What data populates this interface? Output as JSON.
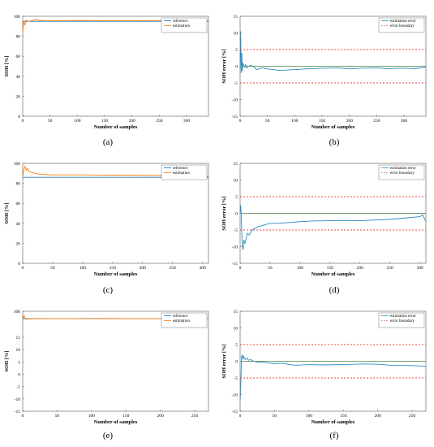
{
  "colors": {
    "reference": "#1f77b4",
    "estimation": "#ff7f0e",
    "estimation_error": "#2b8cc4",
    "boundary": "#e8453c",
    "zero_line": "#6f9e6f"
  },
  "chart_data": [
    {
      "id": "a",
      "type": "line",
      "caption": "(a)",
      "xlabel": "Number of samples",
      "ylabel": "SOH [%]",
      "xlim": [
        0,
        340
      ],
      "ylim": [
        0,
        100
      ],
      "xticks": [
        0,
        50,
        100,
        150,
        200,
        250,
        300
      ],
      "yticks": [
        0,
        20,
        40,
        60,
        80,
        100
      ],
      "legend": "top-right",
      "series": [
        {
          "name": "reference",
          "color_key": "reference",
          "x": [
            0,
            340
          ],
          "y": [
            95,
            95
          ]
        },
        {
          "name": "estimation",
          "color_key": "estimation",
          "x": [
            0,
            2,
            4,
            6,
            10,
            15,
            20,
            25,
            30,
            40,
            60,
            100,
            150,
            200,
            250,
            300,
            340
          ],
          "y": [
            84,
            95,
            91,
            96,
            95,
            95.5,
            96,
            97,
            96,
            95.5,
            95.5,
            95.8,
            95.6,
            95.6,
            95.7,
            95.6,
            95.5
          ]
        }
      ]
    },
    {
      "id": "b",
      "type": "line",
      "caption": "(b)",
      "xlabel": "Number of samples",
      "ylabel": "SOH error [%]",
      "xlim": [
        0,
        340
      ],
      "ylim": [
        -15,
        15
      ],
      "xticks": [
        0,
        50,
        100,
        150,
        200,
        250,
        300
      ],
      "yticks": [
        -15,
        -10,
        -5,
        0,
        5,
        10,
        15
      ],
      "legend": "top-right",
      "series": [
        {
          "name": "estimation error",
          "color_key": "estimation_error",
          "x": [
            0,
            1,
            2,
            3,
            4,
            5,
            6,
            8,
            10,
            12,
            15,
            20,
            25,
            30,
            40,
            50,
            60,
            70,
            80,
            100,
            120,
            150,
            180,
            200,
            220,
            250,
            270,
            300,
            320,
            340
          ],
          "y": [
            -1,
            10.5,
            -2,
            4,
            -1.5,
            1,
            0.5,
            -0.3,
            0.5,
            -0.5,
            0,
            0.3,
            -0.2,
            -1,
            -0.5,
            -0.8,
            -1,
            -1.2,
            -1.2,
            -1,
            -0.8,
            -0.6,
            -0.5,
            -0.8,
            -0.6,
            -0.5,
            -0.7,
            -0.6,
            -0.7,
            -0.3
          ]
        },
        {
          "name": "error boundary",
          "color_key": "boundary",
          "dashed": true,
          "x": [
            0,
            340
          ],
          "y": [
            5,
            5
          ]
        },
        {
          "name": "",
          "color_key": "boundary",
          "dashed": true,
          "x": [
            0,
            340
          ],
          "y": [
            -5,
            -5
          ]
        },
        {
          "name": "",
          "color_key": "zero_line",
          "x": [
            0,
            340
          ],
          "y": [
            0,
            0
          ]
        }
      ]
    },
    {
      "id": "c",
      "type": "line",
      "caption": "(c)",
      "xlabel": "Number of samples",
      "ylabel": "SOH [%]",
      "xlim": [
        0,
        310
      ],
      "ylim": [
        0,
        100
      ],
      "xticks": [
        0,
        50,
        100,
        150,
        200,
        250,
        300
      ],
      "yticks": [
        0,
        20,
        40,
        60,
        80,
        100
      ],
      "legend": "top-right",
      "series": [
        {
          "name": "reference",
          "color_key": "reference",
          "x": [
            0,
            310
          ],
          "y": [
            86,
            86
          ]
        },
        {
          "name": "estimation",
          "color_key": "estimation",
          "x": [
            0,
            2,
            4,
            6,
            8,
            10,
            15,
            20,
            30,
            50,
            100,
            150,
            200,
            250,
            300,
            310
          ],
          "y": [
            86,
            94,
            97,
            93,
            95,
            92,
            91,
            90,
            89,
            88.5,
            88.5,
            88.2,
            88,
            87.8,
            87.5,
            87
          ]
        }
      ]
    },
    {
      "id": "d",
      "type": "line",
      "caption": "(d)",
      "xlabel": "Number of samples",
      "ylabel": "SOH error [%]",
      "xlim": [
        0,
        310
      ],
      "ylim": [
        -15,
        15
      ],
      "xticks": [
        0,
        50,
        100,
        150,
        200,
        250,
        300
      ],
      "yticks": [
        -15,
        -10,
        -5,
        0,
        5,
        10,
        15
      ],
      "legend": "top-right",
      "series": [
        {
          "name": "estimation error",
          "color_key": "estimation_error",
          "x": [
            0,
            1,
            2,
            3,
            4,
            5,
            6,
            8,
            10,
            12,
            15,
            20,
            25,
            30,
            40,
            50,
            60,
            80,
            100,
            120,
            150,
            200,
            250,
            300,
            305,
            310
          ],
          "y": [
            0,
            2.5,
            -1,
            -7,
            -10,
            -11,
            -8,
            -9,
            -7.5,
            -6,
            -6.5,
            -5,
            -4.5,
            -4,
            -3.5,
            -3,
            -3,
            -2.8,
            -2.5,
            -2.3,
            -2.2,
            -2.2,
            -1.8,
            -1,
            -0.5,
            -2.5
          ]
        },
        {
          "name": "error boundary",
          "color_key": "boundary",
          "dashed": true,
          "x": [
            0,
            310
          ],
          "y": [
            5,
            5
          ]
        },
        {
          "name": "",
          "color_key": "boundary",
          "dashed": true,
          "x": [
            0,
            310
          ],
          "y": [
            -5,
            -5
          ]
        },
        {
          "name": "",
          "color_key": "zero_line",
          "x": [
            0,
            310
          ],
          "y": [
            0,
            0
          ]
        }
      ]
    },
    {
      "id": "e",
      "type": "line",
      "caption": "(e)",
      "xlabel": "Number of samples",
      "ylabel": "SOH [%]",
      "xlim": [
        0,
        270
      ],
      "ylim": [
        -15,
        100
      ],
      "xticks": [
        0,
        50,
        100,
        150,
        200,
        250
      ],
      "yticks": [
        -15,
        -10,
        -5,
        0,
        5,
        10,
        15,
        100
      ],
      "legend": "top-right",
      "series": [
        {
          "name": "reference",
          "color_key": "reference",
          "x": [
            0,
            270
          ],
          "y": [
            76,
            76
          ]
        },
        {
          "name": "estimation",
          "color_key": "estimation",
          "x": [
            0,
            1,
            2,
            3,
            4,
            6,
            8,
            10,
            20,
            50,
            100,
            150,
            200,
            250,
            270
          ],
          "y": [
            88,
            78,
            86,
            80,
            74,
            75,
            74.5,
            75,
            75.5,
            76,
            76.5,
            76.3,
            76.2,
            76,
            75.8
          ]
        }
      ]
    },
    {
      "id": "f",
      "type": "line",
      "caption": "(f)",
      "xlabel": "Number of samples",
      "ylabel": "SOH error [%]",
      "xlim": [
        0,
        270
      ],
      "ylim": [
        -15,
        15
      ],
      "xticks": [
        0,
        50,
        100,
        150,
        200,
        250
      ],
      "yticks": [
        -15,
        -10,
        -5,
        0,
        5,
        10,
        15
      ],
      "legend": "top-right",
      "series": [
        {
          "name": "estimation error",
          "color_key": "estimation_error",
          "x": [
            0,
            1,
            2,
            3,
            4,
            5,
            6,
            8,
            10,
            12,
            15,
            20,
            25,
            30,
            40,
            50,
            60,
            80,
            100,
            120,
            150,
            180,
            200,
            220,
            250,
            270
          ],
          "y": [
            -12,
            -7,
            1,
            2,
            0.5,
            1.5,
            1,
            0.5,
            1,
            0.3,
            0.5,
            0,
            -0.3,
            -0.2,
            -0.5,
            -0.7,
            -0.6,
            -1.2,
            -1,
            -1.1,
            -1,
            -0.8,
            -0.9,
            -1.2,
            -1.3,
            -1.5
          ]
        },
        {
          "name": "error boundary",
          "color_key": "boundary",
          "dashed": true,
          "x": [
            0,
            270
          ],
          "y": [
            5,
            5
          ]
        },
        {
          "name": "",
          "color_key": "boundary",
          "dashed": true,
          "x": [
            0,
            270
          ],
          "y": [
            -5,
            -5
          ]
        },
        {
          "name": "",
          "color_key": "zero_line",
          "x": [
            0,
            270
          ],
          "y": [
            0,
            0
          ]
        }
      ]
    }
  ]
}
